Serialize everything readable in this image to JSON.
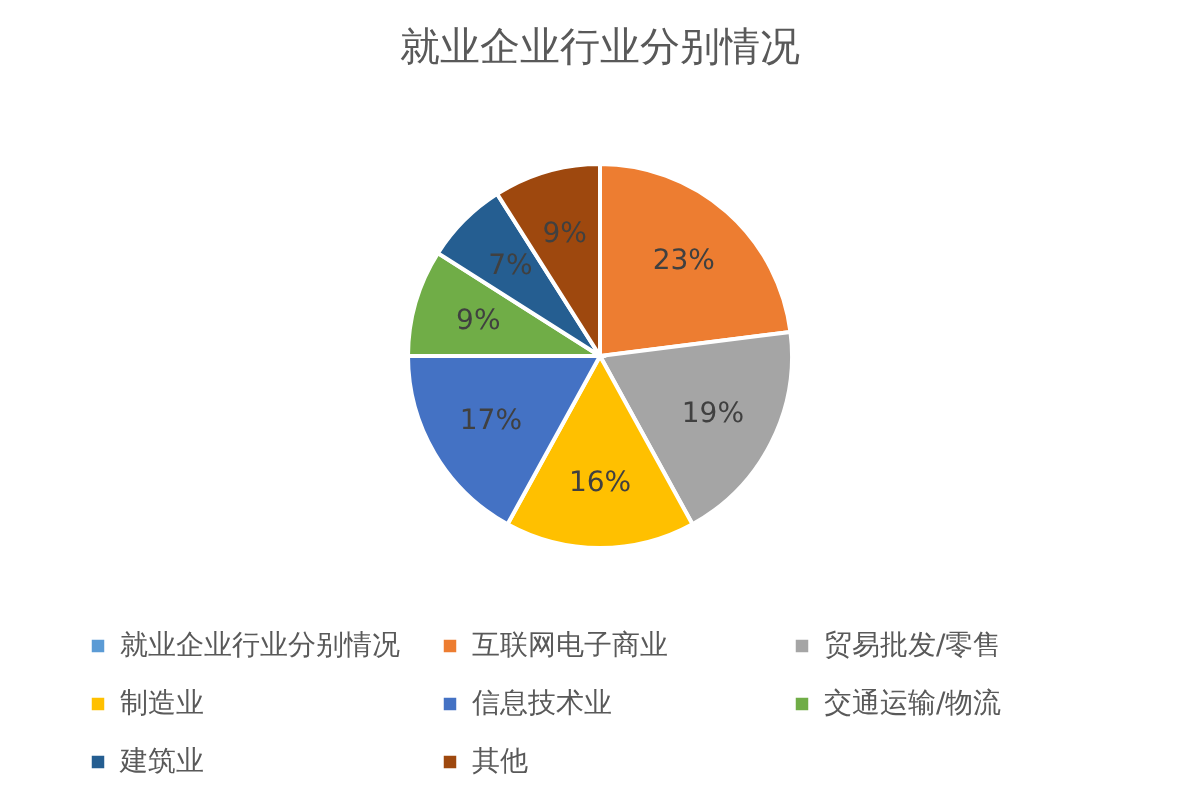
{
  "chart_data": {
    "type": "pie",
    "title": "就业企业行业分别情况",
    "categories": [
      "就业企业行业分别情况",
      "互联网电子商业",
      "贸易批发/零售",
      "制造业",
      "信息技术业",
      "交通运输/物流",
      "建筑业",
      "其他"
    ],
    "values": [
      0,
      23,
      19,
      16,
      17,
      9,
      7,
      9
    ],
    "colors": [
      "#5b9bd5",
      "#ed7d31",
      "#a5a5a5",
      "#ffc000",
      "#4472c4",
      "#70ad47",
      "#255e91",
      "#9e480e"
    ],
    "value_labels": [
      null,
      "23%",
      "19%",
      "16%",
      "17%",
      "9%",
      "7%",
      "9%"
    ],
    "legend": "bottom"
  }
}
